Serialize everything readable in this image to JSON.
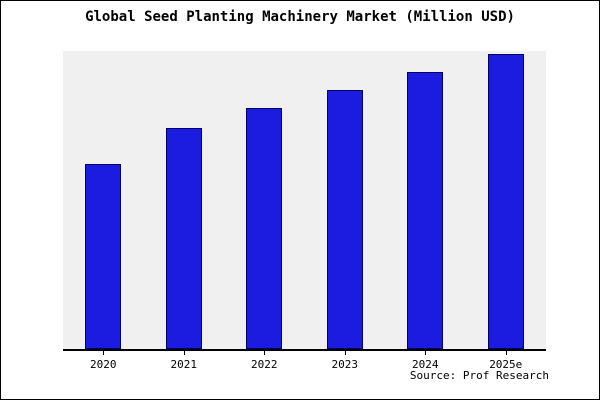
{
  "title": "Global Seed Planting Machinery Market (Million USD)",
  "source": "Source: Prof Research",
  "colors": {
    "bar_fill": "#1c1ce0",
    "bar_edge": "#000066",
    "plot_background": "#f0f0f0",
    "frame_border": "#000000"
  },
  "chart_data": {
    "type": "bar",
    "title": "Global Seed Planting Machinery Market (Million USD)",
    "categories": [
      "2020",
      "2021",
      "2022",
      "2023",
      "2024",
      "2025e"
    ],
    "values": [
      62,
      74,
      81,
      87,
      93,
      99
    ],
    "xlabel": "",
    "ylabel": "",
    "ylim": [
      0,
      100
    ],
    "y_axis_labels_visible": false,
    "grid": false,
    "legend": false,
    "source_annotation": "Source: Prof Research"
  }
}
